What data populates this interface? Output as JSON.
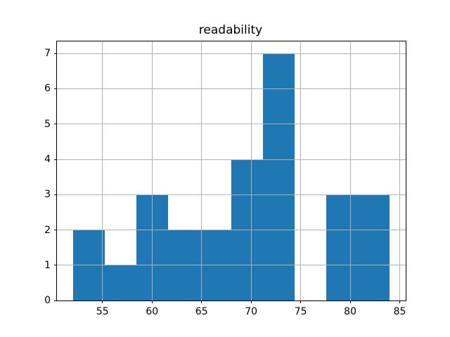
{
  "title": "readability",
  "colors": {
    "bar": "#1f77b4",
    "grid": "#b0b0b0",
    "spine": "#000000",
    "background": "#ffffff",
    "text": "#000000"
  },
  "chart_data": {
    "type": "bar",
    "subtype": "histogram",
    "title": "readability",
    "xlabel": "",
    "ylabel": "",
    "bin_edges": [
      52.0,
      55.2,
      58.4,
      61.6,
      64.8,
      68.0,
      71.2,
      74.4,
      77.6,
      80.8,
      84.0
    ],
    "counts": [
      2,
      1,
      3,
      2,
      2,
      4,
      7,
      0,
      3,
      3
    ],
    "xticks": [
      55,
      60,
      65,
      70,
      75,
      80,
      85
    ],
    "yticks": [
      0,
      1,
      2,
      3,
      4,
      5,
      6,
      7
    ],
    "xlim": [
      50.4,
      85.6
    ],
    "ylim": [
      0,
      7.35
    ],
    "grid": true,
    "grid_above_bars": true,
    "legend": false
  }
}
